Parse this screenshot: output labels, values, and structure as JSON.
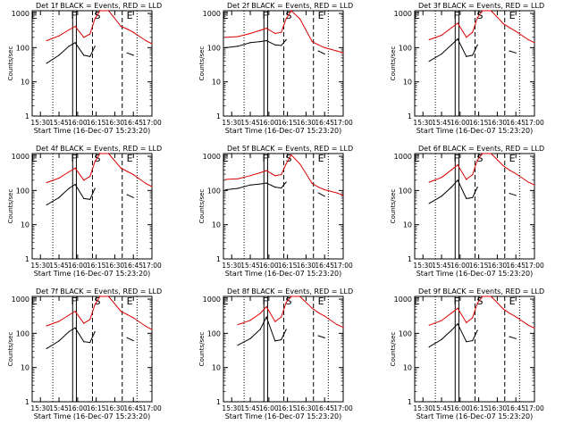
{
  "colors": {
    "events": "#000000",
    "lld": "#dd0000",
    "axis": "#000000",
    "background": "#ffffff"
  },
  "shared": {
    "xlabel": "Start Time (16-Dec-07 15:23:20)",
    "ylabel": "Counts/sec",
    "x_tick_labels": [
      "15:30",
      "15:45",
      "16:00",
      "16:15",
      "16:30",
      "16:45",
      "17:00"
    ],
    "y_tick_labels": [
      "1",
      "10",
      "100",
      "1000"
    ],
    "attenuator_labels": [
      "E",
      "F",
      "S",
      "E"
    ]
  },
  "chart_data": [
    {
      "title": "Det 1f BLACK = Events, RED = LLD",
      "type": "line",
      "scale": "log-y",
      "ylim": [
        1,
        1200
      ],
      "xlim": [
        "15:23:20",
        "17:00"
      ],
      "x": [
        "15:35",
        "15:45",
        "15:53",
        "15:58",
        "16:05",
        "16:10",
        "16:14",
        "16:18",
        "16:25",
        "16:35",
        "16:40",
        "16:45",
        "16:55",
        "17:00"
      ],
      "series": [
        {
          "name": "LLD",
          "values": [
            160,
            220,
            330,
            420,
            200,
            250,
            700,
            1200,
            1200,
            420,
            350,
            280,
            160,
            130
          ]
        },
        {
          "name": "Events",
          "values": [
            35,
            60,
            110,
            140,
            60,
            55,
            110,
            null,
            null,
            null,
            70,
            60,
            null,
            null
          ]
        }
      ],
      "vlines": {
        "solid": [
          "15:56",
          "15:59"
        ],
        "dashed": [
          "16:12",
          "16:36"
        ],
        "dotted": [
          "15:40",
          "16:48"
        ]
      }
    },
    {
      "title": "Det 2f BLACK = Events, RED = LLD",
      "type": "line",
      "scale": "log-y",
      "ylim": [
        1,
        1200
      ],
      "xlim": [
        "15:23:20",
        "17:00"
      ],
      "x": [
        "15:25",
        "15:35",
        "15:45",
        "15:53",
        "15:58",
        "16:05",
        "16:10",
        "16:14",
        "16:18",
        "16:25",
        "16:35",
        "16:40",
        "16:45",
        "16:55",
        "17:00"
      ],
      "series": [
        {
          "name": "LLD",
          "values": [
            200,
            210,
            260,
            320,
            370,
            260,
            280,
            700,
            1200,
            700,
            150,
            120,
            100,
            80,
            70
          ]
        },
        {
          "name": "Events",
          "values": [
            100,
            110,
            140,
            150,
            160,
            120,
            115,
            170,
            null,
            null,
            null,
            80,
            65,
            null,
            null
          ]
        }
      ],
      "vlines": {
        "solid": [
          "15:56",
          "15:59"
        ],
        "dashed": [
          "16:12",
          "16:36"
        ],
        "dotted": [
          "15:40",
          "16:48"
        ]
      }
    },
    {
      "title": "Det 3f BLACK = Events, RED = LLD",
      "type": "line",
      "scale": "log-y",
      "ylim": [
        1,
        1200
      ],
      "xlim": [
        "15:23:20",
        "17:00"
      ],
      "x": [
        "15:35",
        "15:45",
        "15:53",
        "15:58",
        "16:05",
        "16:10",
        "16:14",
        "16:18",
        "16:25",
        "16:35",
        "16:40",
        "16:45",
        "16:55",
        "17:00"
      ],
      "series": [
        {
          "name": "LLD",
          "values": [
            170,
            230,
            380,
            520,
            200,
            280,
            750,
            1200,
            1200,
            500,
            380,
            300,
            170,
            140
          ]
        },
        {
          "name": "Events",
          "values": [
            40,
            65,
            120,
            180,
            55,
            60,
            120,
            null,
            null,
            null,
            80,
            70,
            null,
            null
          ]
        }
      ],
      "vlines": {
        "solid": [
          "15:56",
          "15:59"
        ],
        "dashed": [
          "16:12",
          "16:36"
        ],
        "dotted": [
          "15:40",
          "16:48"
        ]
      }
    },
    {
      "title": "Det 4f BLACK = Events, RED = LLD",
      "type": "line",
      "scale": "log-y",
      "ylim": [
        1,
        1200
      ],
      "xlim": [
        "15:23:20",
        "17:00"
      ],
      "x": [
        "15:35",
        "15:45",
        "15:53",
        "15:58",
        "16:05",
        "16:10",
        "16:14",
        "16:18",
        "16:25",
        "16:35",
        "16:40",
        "16:45",
        "16:55",
        "17:00"
      ],
      "series": [
        {
          "name": "LLD",
          "values": [
            170,
            230,
            350,
            450,
            200,
            260,
            700,
            1200,
            1200,
            450,
            360,
            290,
            160,
            130
          ]
        },
        {
          "name": "Events",
          "values": [
            38,
            62,
            115,
            150,
            58,
            55,
            115,
            null,
            null,
            null,
            75,
            62,
            null,
            null
          ]
        }
      ],
      "vlines": {
        "solid": [
          "15:56",
          "15:59"
        ],
        "dashed": [
          "16:12",
          "16:36"
        ],
        "dotted": [
          "15:40",
          "16:48"
        ]
      }
    },
    {
      "title": "Det 5f BLACK = Events, RED = LLD",
      "type": "line",
      "scale": "log-y",
      "ylim": [
        1,
        1200
      ],
      "xlim": [
        "15:23:20",
        "17:00"
      ],
      "x": [
        "15:25",
        "15:35",
        "15:45",
        "15:53",
        "15:58",
        "16:05",
        "16:10",
        "16:14",
        "16:18",
        "16:25",
        "16:35",
        "16:40",
        "16:45",
        "16:55",
        "17:00"
      ],
      "series": [
        {
          "name": "LLD",
          "values": [
            210,
            220,
            270,
            330,
            380,
            270,
            290,
            600,
            1100,
            600,
            160,
            125,
            105,
            85,
            72
          ]
        },
        {
          "name": "Events",
          "values": [
            105,
            115,
            145,
            155,
            165,
            125,
            118,
            175,
            null,
            null,
            null,
            85,
            68,
            null,
            null
          ]
        }
      ],
      "vlines": {
        "solid": [
          "15:56",
          "15:59"
        ],
        "dashed": [
          "16:12",
          "16:36"
        ],
        "dotted": [
          "15:40",
          "16:48"
        ]
      }
    },
    {
      "title": "Det 6f BLACK = Events, RED = LLD",
      "type": "line",
      "scale": "log-y",
      "ylim": [
        1,
        1200
      ],
      "xlim": [
        "15:23:20",
        "17:00"
      ],
      "x": [
        "15:35",
        "15:45",
        "15:53",
        "15:58",
        "16:05",
        "16:10",
        "16:14",
        "16:18",
        "16:25",
        "16:35",
        "16:40",
        "16:45",
        "16:55",
        "17:00"
      ],
      "series": [
        {
          "name": "LLD",
          "values": [
            175,
            240,
            400,
            560,
            210,
            290,
            780,
            1200,
            1200,
            520,
            390,
            310,
            175,
            145
          ]
        },
        {
          "name": "Events",
          "values": [
            42,
            68,
            125,
            200,
            58,
            62,
            125,
            null,
            null,
            null,
            82,
            72,
            null,
            null
          ]
        }
      ],
      "vlines": {
        "solid": [
          "15:56",
          "15:59"
        ],
        "dashed": [
          "16:12",
          "16:36"
        ],
        "dotted": [
          "15:40",
          "16:48"
        ]
      }
    },
    {
      "title": "Det 7f BLACK = Events, RED = LLD",
      "type": "line",
      "scale": "log-y",
      "ylim": [
        1,
        1200
      ],
      "xlim": [
        "15:23:20",
        "17:00"
      ],
      "x": [
        "15:35",
        "15:45",
        "15:53",
        "15:58",
        "16:05",
        "16:10",
        "16:14",
        "16:18",
        "16:25",
        "16:35",
        "16:40",
        "16:45",
        "16:55",
        "17:00"
      ],
      "series": [
        {
          "name": "LLD",
          "values": [
            165,
            225,
            340,
            440,
            195,
            255,
            690,
            1200,
            1200,
            440,
            355,
            285,
            160,
            128
          ]
        },
        {
          "name": "Events",
          "values": [
            36,
            60,
            112,
            145,
            57,
            54,
            112,
            null,
            null,
            null,
            74,
            61,
            null,
            null
          ]
        }
      ],
      "vlines": {
        "solid": [
          "15:56",
          "15:59"
        ],
        "dashed": [
          "16:12",
          "16:36"
        ],
        "dotted": [
          "15:40",
          "16:48"
        ]
      }
    },
    {
      "title": "Det 8f BLACK = Events, RED = LLD",
      "type": "line",
      "scale": "log-y",
      "ylim": [
        1,
        1200
      ],
      "xlim": [
        "15:23:20",
        "17:00"
      ],
      "x": [
        "15:35",
        "15:45",
        "15:53",
        "15:58",
        "16:05",
        "16:10",
        "16:14",
        "16:18",
        "16:25",
        "16:35",
        "16:40",
        "16:45",
        "16:55",
        "17:00"
      ],
      "series": [
        {
          "name": "LLD",
          "values": [
            180,
            240,
            380,
            600,
            220,
            300,
            800,
            1200,
            1200,
            540,
            400,
            320,
            180,
            150
          ]
        },
        {
          "name": "Events",
          "values": [
            45,
            70,
            130,
            300,
            60,
            65,
            130,
            null,
            null,
            null,
            85,
            74,
            null,
            null
          ]
        }
      ],
      "vlines": {
        "solid": [
          "15:56",
          "15:59"
        ],
        "dashed": [
          "16:12",
          "16:36"
        ],
        "dotted": [
          "15:40",
          "16:48"
        ]
      }
    },
    {
      "title": "Det 9f BLACK = Events, RED = LLD",
      "type": "line",
      "scale": "log-y",
      "ylim": [
        1,
        1200
      ],
      "xlim": [
        "15:23:20",
        "17:00"
      ],
      "x": [
        "15:35",
        "15:45",
        "15:53",
        "15:58",
        "16:05",
        "16:10",
        "16:14",
        "16:18",
        "16:25",
        "16:35",
        "16:40",
        "16:45",
        "16:55",
        "17:00"
      ],
      "series": [
        {
          "name": "LLD",
          "values": [
            172,
            235,
            390,
            540,
            205,
            285,
            760,
            1200,
            1200,
            510,
            385,
            305,
            172,
            142
          ]
        },
        {
          "name": "Events",
          "values": [
            40,
            66,
            122,
            190,
            57,
            61,
            122,
            null,
            null,
            null,
            80,
            70,
            null,
            null
          ]
        }
      ],
      "vlines": {
        "solid": [
          "15:56",
          "15:59"
        ],
        "dashed": [
          "16:12",
          "16:36"
        ],
        "dotted": [
          "15:40",
          "16:48"
        ]
      }
    }
  ]
}
